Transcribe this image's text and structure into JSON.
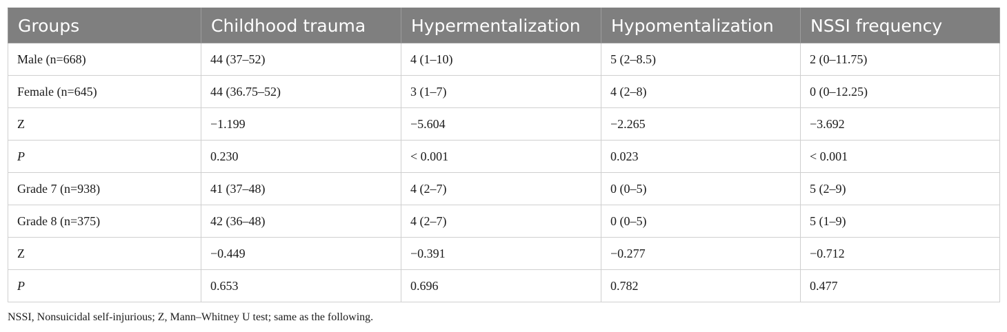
{
  "table": {
    "headers": [
      "Groups",
      "Childhood trauma",
      "Hypermentalization",
      "Hypomentalization",
      "NSSI frequency"
    ],
    "rows": [
      [
        "Male (n=668)",
        "44 (37–52)",
        "4 (1–10)",
        "5 (2–8.5)",
        "2 (0–11.75)"
      ],
      [
        "Female (n=645)",
        "44 (36.75–52)",
        "3 (1–7)",
        "4 (2–8)",
        "0 (0–12.25)"
      ],
      [
        "Z",
        "−1.199",
        "−5.604",
        "−2.265",
        "−3.692"
      ],
      [
        "P",
        "0.230",
        "< 0.001",
        "0.023",
        "< 0.001"
      ],
      [
        "Grade 7 (n=938)",
        "41 (37–48)",
        "4 (2–7)",
        "0 (0–5)",
        "5 (2–9)"
      ],
      [
        "Grade 8 (n=375)",
        "42 (36–48)",
        "4 (2–7)",
        "0 (0–5)",
        "5 (1–9)"
      ],
      [
        "Z",
        "−0.449",
        "−0.391",
        "−0.277",
        "−0.712"
      ],
      [
        "P",
        "0.653",
        "0.696",
        "0.782",
        "0.477"
      ]
    ]
  },
  "footnote": "NSSI, Nonsuicidal self-injurious; Z, Mann–Whitney U test; same as the following.",
  "colors": {
    "header_bg": "#7f7f7f",
    "header_text": "#ffffff",
    "border": "#cfcfcf"
  }
}
